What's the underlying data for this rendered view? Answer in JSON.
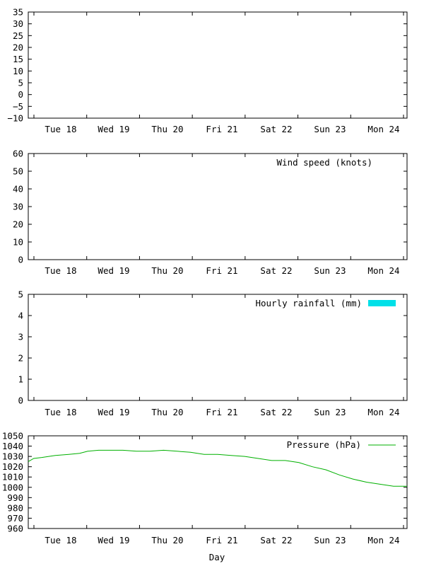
{
  "chart_data": [
    {
      "type": "line",
      "title": "",
      "xlabel": "",
      "ylabel": "",
      "ylim": [
        -10,
        35
      ],
      "y_ticks": [
        -10,
        -5,
        0,
        5,
        10,
        15,
        20,
        25,
        30,
        35
      ],
      "y_tick_labels": [
        "−10",
        "−5",
        "0",
        "5",
        "10",
        "15",
        "20",
        "25",
        "30",
        "35"
      ],
      "day_labels": [
        "Tue 18",
        "Wed 19",
        "Thu 20",
        "Fri 21",
        "Sat 22",
        "Sun 23",
        "Mon 24"
      ],
      "series": []
    },
    {
      "type": "line",
      "title": "",
      "xlabel": "",
      "ylabel": "",
      "ylim": [
        0,
        60
      ],
      "y_ticks": [
        0,
        10,
        20,
        30,
        40,
        50,
        60
      ],
      "y_tick_labels": [
        "0",
        "10",
        "20",
        "30",
        "40",
        "50",
        "60"
      ],
      "day_labels": [
        "Tue 18",
        "Wed 19",
        "Thu 20",
        "Fri 21",
        "Sat 22",
        "Sun 23",
        "Mon 24"
      ],
      "legend": "Wind speed (knots)",
      "legend_position": "top-right",
      "series": []
    },
    {
      "type": "bar",
      "title": "",
      "xlabel": "",
      "ylabel": "",
      "ylim": [
        0,
        5
      ],
      "y_ticks": [
        0,
        1,
        2,
        3,
        4,
        5
      ],
      "y_tick_labels": [
        "0",
        "1",
        "2",
        "3",
        "4",
        "5"
      ],
      "day_labels": [
        "Tue 18",
        "Wed 19",
        "Thu 20",
        "Fri 21",
        "Sat 22",
        "Sun 23",
        "Mon 24"
      ],
      "legend": "Hourly rainfall (mm)",
      "legend_position": "top-right",
      "legend_color": "#00e0e8",
      "series": []
    },
    {
      "type": "line",
      "title": "",
      "xlabel": "Day",
      "ylabel": "",
      "ylim": [
        960,
        1050
      ],
      "y_ticks": [
        960,
        970,
        980,
        990,
        1000,
        1010,
        1020,
        1030,
        1040,
        1050
      ],
      "y_tick_labels": [
        "960",
        "970",
        "980",
        "990",
        "1000",
        "1010",
        "1020",
        "1030",
        "1040",
        "1050"
      ],
      "day_labels": [
        "Tue 18",
        "Wed 19",
        "Thu 20",
        "Fri 21",
        "Sat 22",
        "Sun 23",
        "Mon 24"
      ],
      "legend": "Pressure (hPa)",
      "legend_position": "top-right",
      "series_color": "#00b000",
      "x_unit": "days",
      "x_range": [
        0,
        7
      ],
      "series": [
        {
          "x": [
            0,
            0.1,
            0.25,
            0.5,
            0.75,
            0.95,
            1.1,
            1.3,
            1.5,
            1.75,
            2.0,
            2.25,
            2.5,
            2.75,
            3.0,
            3.25,
            3.5,
            3.75,
            4.0,
            4.25,
            4.5,
            4.75,
            5.0,
            5.25,
            5.5,
            5.75,
            6.0,
            6.25,
            6.5,
            6.75,
            7.0
          ],
          "y": [
            1025,
            1028,
            1029,
            1031,
            1032,
            1033,
            1035,
            1036,
            1036,
            1036,
            1035,
            1035,
            1036,
            1035,
            1034,
            1032,
            1032,
            1031,
            1030,
            1028,
            1026,
            1026,
            1024,
            1020,
            1017,
            1012,
            1008,
            1005,
            1003,
            1001,
            1001
          ]
        }
      ]
    }
  ]
}
